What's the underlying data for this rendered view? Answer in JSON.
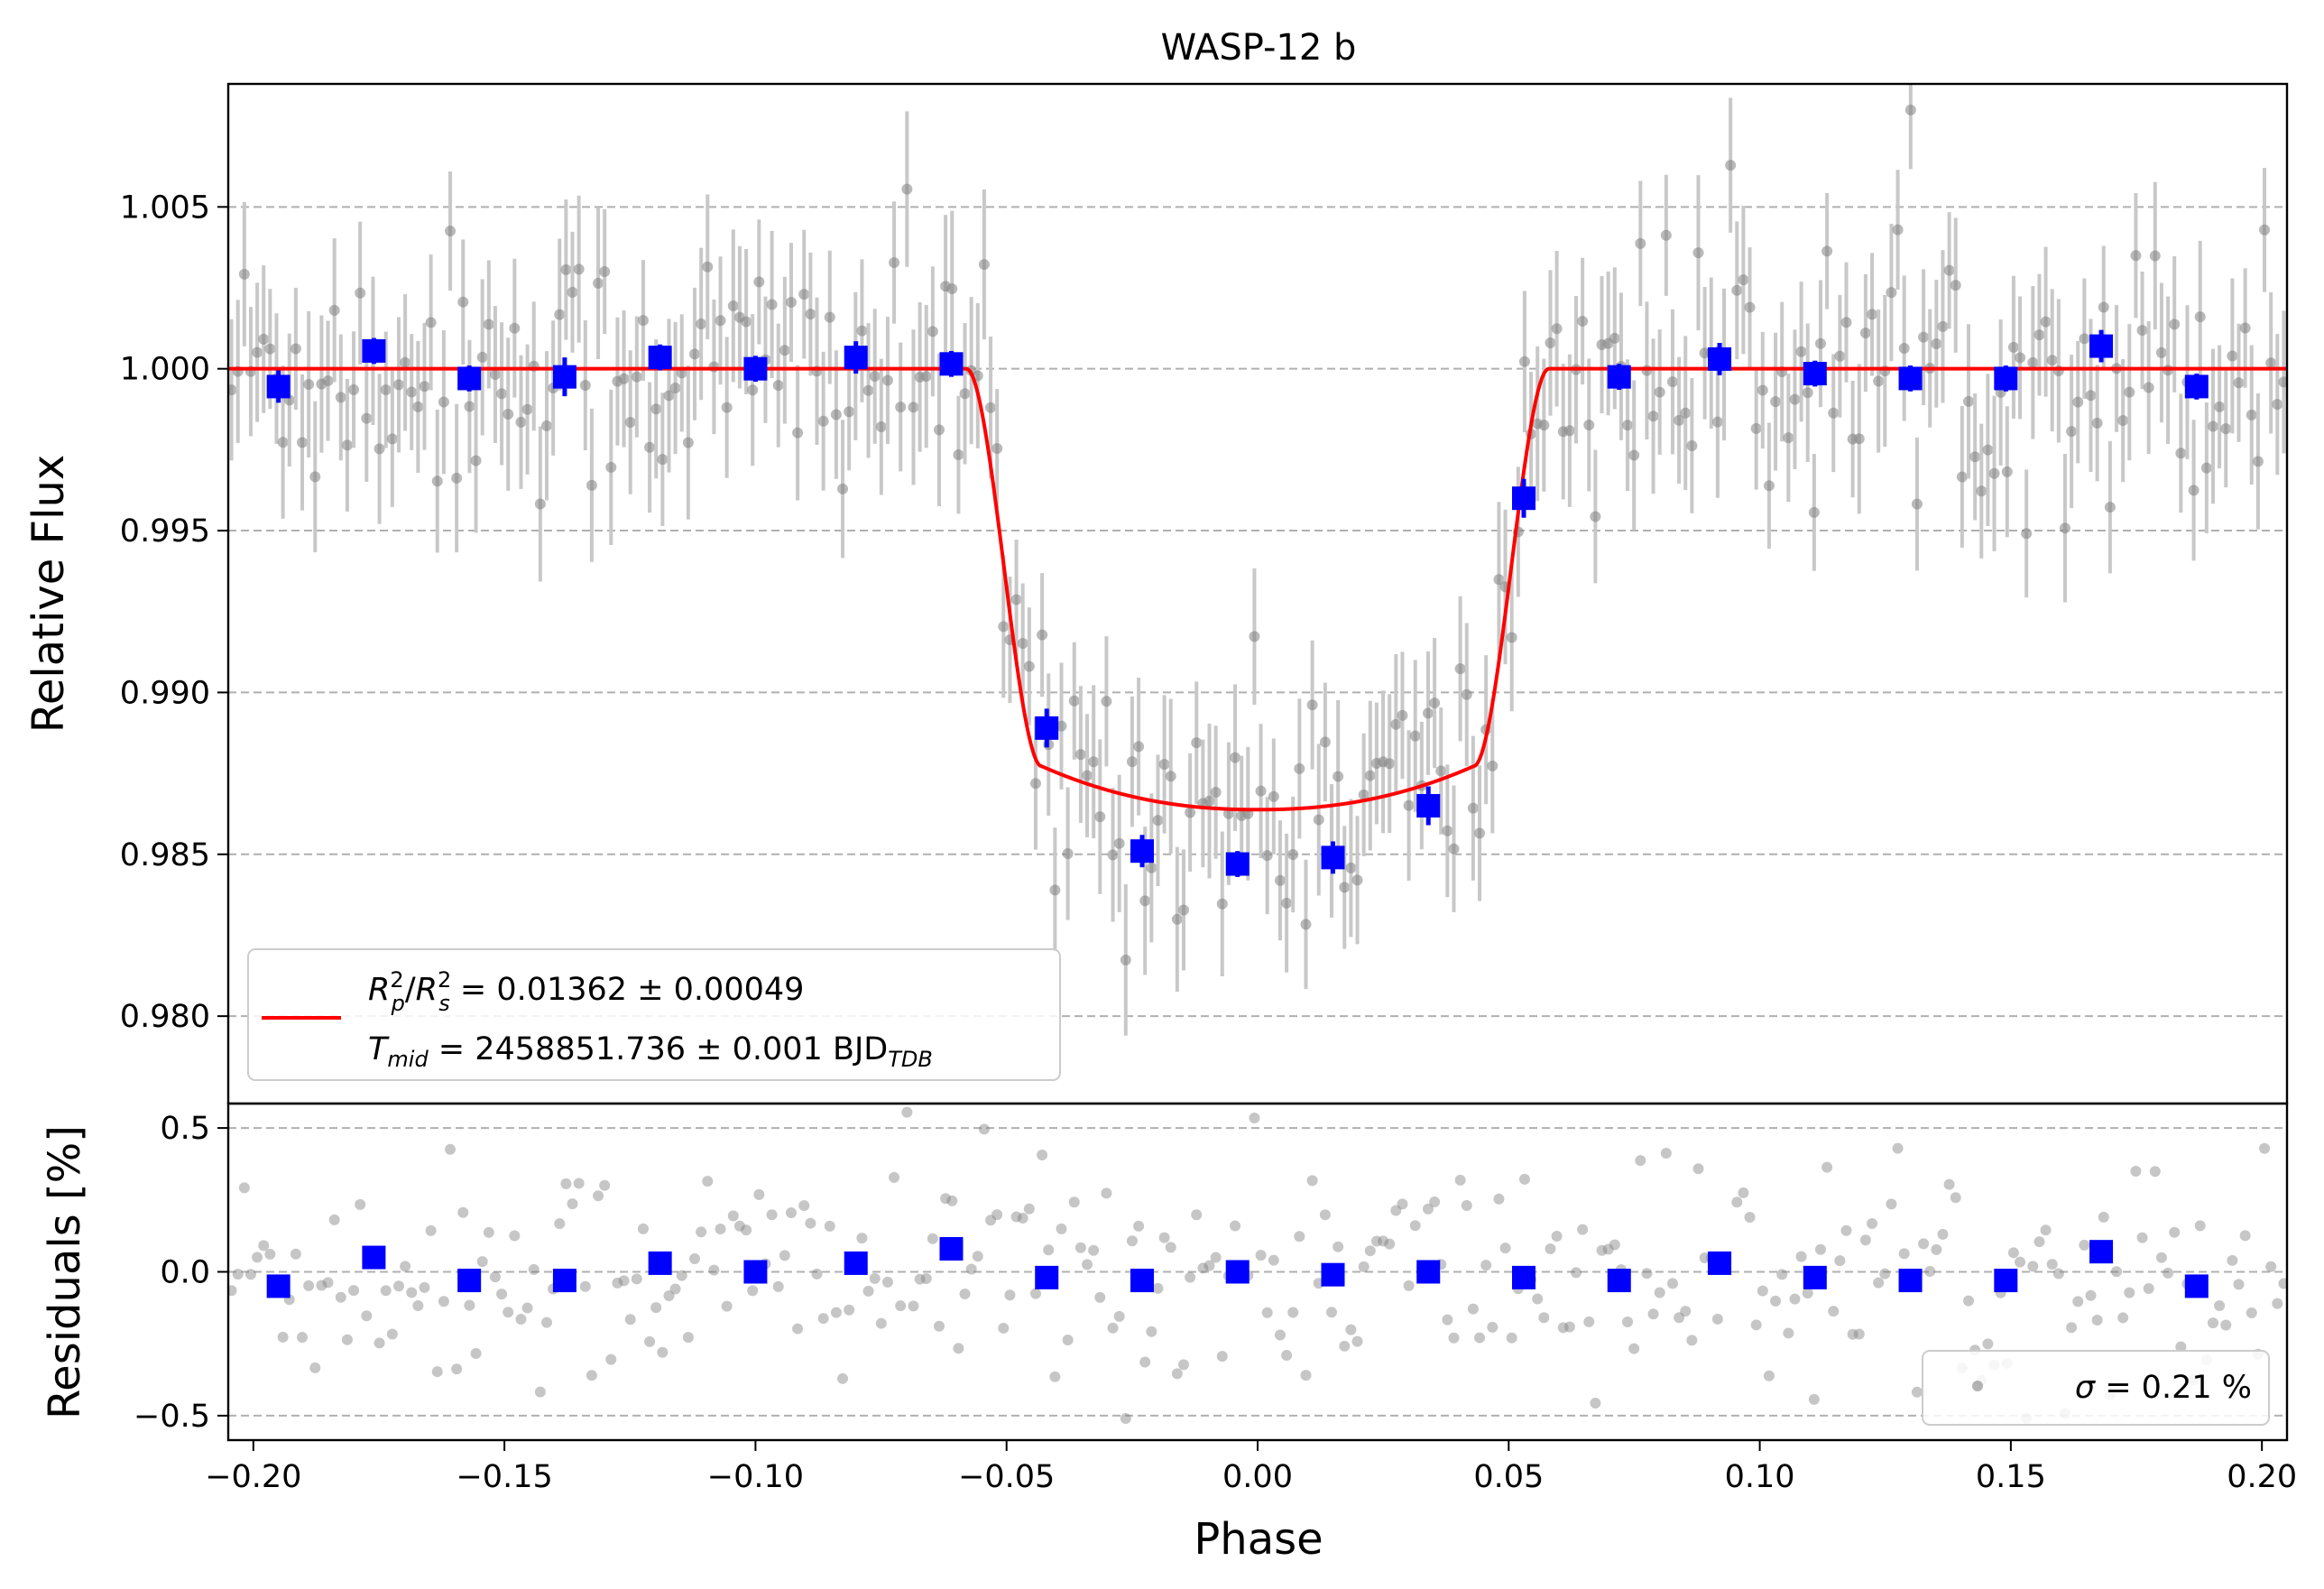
{
  "chart_data": {
    "type": "scatter",
    "title": "WASP-12 b",
    "xlabel": "Phase",
    "xlim": [
      -0.205,
      0.205
    ],
    "x_ticks": [
      -0.2,
      -0.15,
      -0.1,
      -0.05,
      0.0,
      0.05,
      0.1,
      0.15,
      0.2
    ],
    "x_tick_labels": [
      "−0.20",
      "−0.15",
      "−0.10",
      "−0.05",
      "0.00",
      "0.05",
      "0.10",
      "0.15",
      "0.20"
    ],
    "grid": "horizontal dashed",
    "colors": {
      "data": "#808080",
      "errorbar": "#c8c8c8",
      "binned": "#0000ff",
      "model": "#ff0000",
      "grid": "#b0b0b0"
    },
    "top_panel": {
      "ylabel": "Relative Flux",
      "ylim": [
        0.9773,
        1.0088
      ],
      "y_ticks": [
        0.98,
        0.985,
        0.99,
        0.995,
        1.0,
        1.005
      ],
      "y_tick_labels": [
        "0.980",
        "0.985",
        "0.990",
        "0.995",
        "1.000",
        "1.005"
      ],
      "transit_depth": 0.01362,
      "transit_depth_err": 0.00049,
      "transit_half_duration_phase": 0.058,
      "ingress_duration_phase": 0.015,
      "limb_darkening_coeff": 0.82,
      "binned_points": [
        {
          "x": -0.195,
          "y": 0.99945,
          "err": 0.0005
        },
        {
          "x": -0.176,
          "y": 1.00055,
          "err": 0.0004
        },
        {
          "x": -0.157,
          "y": 0.9997,
          "err": 0.0004
        },
        {
          "x": -0.138,
          "y": 0.99975,
          "err": 0.0006
        },
        {
          "x": -0.119,
          "y": 1.00035,
          "err": 0.0004
        },
        {
          "x": -0.1,
          "y": 1.0,
          "err": 0.0004
        },
        {
          "x": -0.08,
          "y": 1.00035,
          "err": 0.0005
        },
        {
          "x": -0.061,
          "y": 1.00015,
          "err": 0.0004
        },
        {
          "x": -0.042,
          "y": 0.9889,
          "err": 0.0006
        },
        {
          "x": -0.023,
          "y": 0.9851,
          "err": 0.0005
        },
        {
          "x": -0.004,
          "y": 0.9847,
          "err": 0.0004
        },
        {
          "x": 0.015,
          "y": 0.9849,
          "err": 0.0005
        },
        {
          "x": 0.034,
          "y": 0.9865,
          "err": 0.0006
        },
        {
          "x": 0.053,
          "y": 0.996,
          "err": 0.0006
        },
        {
          "x": 0.072,
          "y": 0.99975,
          "err": 0.0004
        },
        {
          "x": 0.092,
          "y": 1.0003,
          "err": 0.0005
        },
        {
          "x": 0.111,
          "y": 0.99985,
          "err": 0.0004
        },
        {
          "x": 0.13,
          "y": 0.9997,
          "err": 0.0004
        },
        {
          "x": 0.149,
          "y": 0.9997,
          "err": 0.0004
        },
        {
          "x": 0.168,
          "y": 1.0007,
          "err": 0.0005
        },
        {
          "x": 0.187,
          "y": 0.99945,
          "err": 0.0004
        }
      ],
      "raw_points": {
        "count": 320,
        "x_range": [
          -0.205,
          0.205
        ],
        "scatter_sigma": 0.0021,
        "errorbar": 0.0021,
        "seed": 12345
      }
    },
    "bottom_panel": {
      "ylabel": "Residuals [%]",
      "ylim": [
        -0.585,
        0.585
      ],
      "y_ticks": [
        -0.5,
        0.0,
        0.5
      ],
      "y_tick_labels": [
        "−0.5",
        "0.0",
        "0.5"
      ],
      "binned_residuals": [
        {
          "x": -0.195,
          "y": -0.05
        },
        {
          "x": -0.176,
          "y": 0.05
        },
        {
          "x": -0.157,
          "y": -0.03
        },
        {
          "x": -0.138,
          "y": -0.03
        },
        {
          "x": -0.119,
          "y": 0.03
        },
        {
          "x": -0.1,
          "y": 0.0
        },
        {
          "x": -0.08,
          "y": 0.03
        },
        {
          "x": -0.061,
          "y": 0.08
        },
        {
          "x": -0.042,
          "y": -0.02
        },
        {
          "x": -0.023,
          "y": -0.03
        },
        {
          "x": -0.004,
          "y": 0.0
        },
        {
          "x": 0.015,
          "y": -0.01
        },
        {
          "x": 0.034,
          "y": 0.0
        },
        {
          "x": 0.053,
          "y": -0.02
        },
        {
          "x": 0.072,
          "y": -0.03
        },
        {
          "x": 0.092,
          "y": 0.03
        },
        {
          "x": 0.111,
          "y": -0.02
        },
        {
          "x": 0.13,
          "y": -0.03
        },
        {
          "x": 0.149,
          "y": -0.03
        },
        {
          "x": 0.168,
          "y": 0.07
        },
        {
          "x": 0.187,
          "y": -0.05
        }
      ]
    },
    "legend_top": {
      "placement": "lower-left",
      "line1": {
        "a": "R",
        "a_sup": "2",
        "a_sub": "p",
        "slash": "/",
        "b": "R",
        "b_sup": "2",
        "b_sub": "s",
        "value": " = 0.01362 ± 0.00049"
      },
      "line2": {
        "t": "T",
        "t_sub": "mid",
        "value": " = 2458851.736 ± 0.001 BJD",
        "value_sub": "TDB"
      }
    },
    "legend_bottom": {
      "placement": "lower-right",
      "sigma_symbol": "σ",
      "text": " = 0.21 %"
    }
  }
}
